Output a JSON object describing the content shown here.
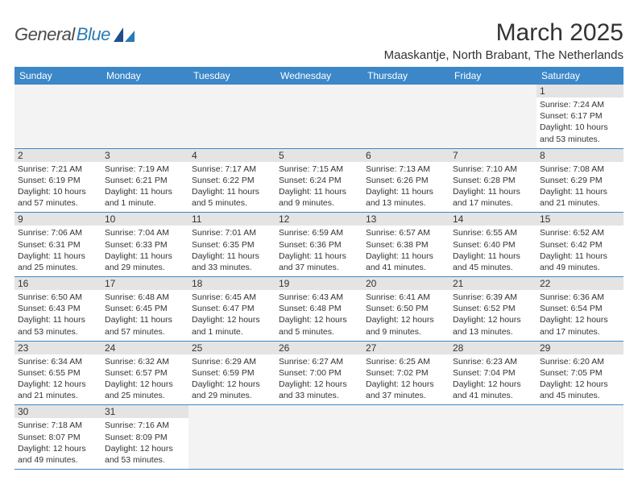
{
  "brand": {
    "part1": "General",
    "part2": "Blue",
    "text_color_1": "#4a4a4a",
    "text_color_2": "#2a7ab8",
    "mark_color": "#1f4e8c"
  },
  "title": "March 2025",
  "subtitle": "Maaskantje, North Brabant, The Netherlands",
  "colors": {
    "header_bg": "#3b87c8",
    "header_text": "#ffffff",
    "daynum_bg": "#e4e4e4",
    "empty_bg": "#f3f3f3",
    "row_border": "#3b87c8",
    "text": "#333333"
  },
  "weekdays": [
    "Sunday",
    "Monday",
    "Tuesday",
    "Wednesday",
    "Thursday",
    "Friday",
    "Saturday"
  ],
  "weeks": [
    [
      null,
      null,
      null,
      null,
      null,
      null,
      {
        "n": "1",
        "sr": "Sunrise: 7:24 AM",
        "ss": "Sunset: 6:17 PM",
        "d1": "Daylight: 10 hours",
        "d2": "and 53 minutes."
      }
    ],
    [
      {
        "n": "2",
        "sr": "Sunrise: 7:21 AM",
        "ss": "Sunset: 6:19 PM",
        "d1": "Daylight: 10 hours",
        "d2": "and 57 minutes."
      },
      {
        "n": "3",
        "sr": "Sunrise: 7:19 AM",
        "ss": "Sunset: 6:21 PM",
        "d1": "Daylight: 11 hours",
        "d2": "and 1 minute."
      },
      {
        "n": "4",
        "sr": "Sunrise: 7:17 AM",
        "ss": "Sunset: 6:22 PM",
        "d1": "Daylight: 11 hours",
        "d2": "and 5 minutes."
      },
      {
        "n": "5",
        "sr": "Sunrise: 7:15 AM",
        "ss": "Sunset: 6:24 PM",
        "d1": "Daylight: 11 hours",
        "d2": "and 9 minutes."
      },
      {
        "n": "6",
        "sr": "Sunrise: 7:13 AM",
        "ss": "Sunset: 6:26 PM",
        "d1": "Daylight: 11 hours",
        "d2": "and 13 minutes."
      },
      {
        "n": "7",
        "sr": "Sunrise: 7:10 AM",
        "ss": "Sunset: 6:28 PM",
        "d1": "Daylight: 11 hours",
        "d2": "and 17 minutes."
      },
      {
        "n": "8",
        "sr": "Sunrise: 7:08 AM",
        "ss": "Sunset: 6:29 PM",
        "d1": "Daylight: 11 hours",
        "d2": "and 21 minutes."
      }
    ],
    [
      {
        "n": "9",
        "sr": "Sunrise: 7:06 AM",
        "ss": "Sunset: 6:31 PM",
        "d1": "Daylight: 11 hours",
        "d2": "and 25 minutes."
      },
      {
        "n": "10",
        "sr": "Sunrise: 7:04 AM",
        "ss": "Sunset: 6:33 PM",
        "d1": "Daylight: 11 hours",
        "d2": "and 29 minutes."
      },
      {
        "n": "11",
        "sr": "Sunrise: 7:01 AM",
        "ss": "Sunset: 6:35 PM",
        "d1": "Daylight: 11 hours",
        "d2": "and 33 minutes."
      },
      {
        "n": "12",
        "sr": "Sunrise: 6:59 AM",
        "ss": "Sunset: 6:36 PM",
        "d1": "Daylight: 11 hours",
        "d2": "and 37 minutes."
      },
      {
        "n": "13",
        "sr": "Sunrise: 6:57 AM",
        "ss": "Sunset: 6:38 PM",
        "d1": "Daylight: 11 hours",
        "d2": "and 41 minutes."
      },
      {
        "n": "14",
        "sr": "Sunrise: 6:55 AM",
        "ss": "Sunset: 6:40 PM",
        "d1": "Daylight: 11 hours",
        "d2": "and 45 minutes."
      },
      {
        "n": "15",
        "sr": "Sunrise: 6:52 AM",
        "ss": "Sunset: 6:42 PM",
        "d1": "Daylight: 11 hours",
        "d2": "and 49 minutes."
      }
    ],
    [
      {
        "n": "16",
        "sr": "Sunrise: 6:50 AM",
        "ss": "Sunset: 6:43 PM",
        "d1": "Daylight: 11 hours",
        "d2": "and 53 minutes."
      },
      {
        "n": "17",
        "sr": "Sunrise: 6:48 AM",
        "ss": "Sunset: 6:45 PM",
        "d1": "Daylight: 11 hours",
        "d2": "and 57 minutes."
      },
      {
        "n": "18",
        "sr": "Sunrise: 6:45 AM",
        "ss": "Sunset: 6:47 PM",
        "d1": "Daylight: 12 hours",
        "d2": "and 1 minute."
      },
      {
        "n": "19",
        "sr": "Sunrise: 6:43 AM",
        "ss": "Sunset: 6:48 PM",
        "d1": "Daylight: 12 hours",
        "d2": "and 5 minutes."
      },
      {
        "n": "20",
        "sr": "Sunrise: 6:41 AM",
        "ss": "Sunset: 6:50 PM",
        "d1": "Daylight: 12 hours",
        "d2": "and 9 minutes."
      },
      {
        "n": "21",
        "sr": "Sunrise: 6:39 AM",
        "ss": "Sunset: 6:52 PM",
        "d1": "Daylight: 12 hours",
        "d2": "and 13 minutes."
      },
      {
        "n": "22",
        "sr": "Sunrise: 6:36 AM",
        "ss": "Sunset: 6:54 PM",
        "d1": "Daylight: 12 hours",
        "d2": "and 17 minutes."
      }
    ],
    [
      {
        "n": "23",
        "sr": "Sunrise: 6:34 AM",
        "ss": "Sunset: 6:55 PM",
        "d1": "Daylight: 12 hours",
        "d2": "and 21 minutes."
      },
      {
        "n": "24",
        "sr": "Sunrise: 6:32 AM",
        "ss": "Sunset: 6:57 PM",
        "d1": "Daylight: 12 hours",
        "d2": "and 25 minutes."
      },
      {
        "n": "25",
        "sr": "Sunrise: 6:29 AM",
        "ss": "Sunset: 6:59 PM",
        "d1": "Daylight: 12 hours",
        "d2": "and 29 minutes."
      },
      {
        "n": "26",
        "sr": "Sunrise: 6:27 AM",
        "ss": "Sunset: 7:00 PM",
        "d1": "Daylight: 12 hours",
        "d2": "and 33 minutes."
      },
      {
        "n": "27",
        "sr": "Sunrise: 6:25 AM",
        "ss": "Sunset: 7:02 PM",
        "d1": "Daylight: 12 hours",
        "d2": "and 37 minutes."
      },
      {
        "n": "28",
        "sr": "Sunrise: 6:23 AM",
        "ss": "Sunset: 7:04 PM",
        "d1": "Daylight: 12 hours",
        "d2": "and 41 minutes."
      },
      {
        "n": "29",
        "sr": "Sunrise: 6:20 AM",
        "ss": "Sunset: 7:05 PM",
        "d1": "Daylight: 12 hours",
        "d2": "and 45 minutes."
      }
    ],
    [
      {
        "n": "30",
        "sr": "Sunrise: 7:18 AM",
        "ss": "Sunset: 8:07 PM",
        "d1": "Daylight: 12 hours",
        "d2": "and 49 minutes."
      },
      {
        "n": "31",
        "sr": "Sunrise: 7:16 AM",
        "ss": "Sunset: 8:09 PM",
        "d1": "Daylight: 12 hours",
        "d2": "and 53 minutes."
      },
      null,
      null,
      null,
      null,
      null
    ]
  ]
}
